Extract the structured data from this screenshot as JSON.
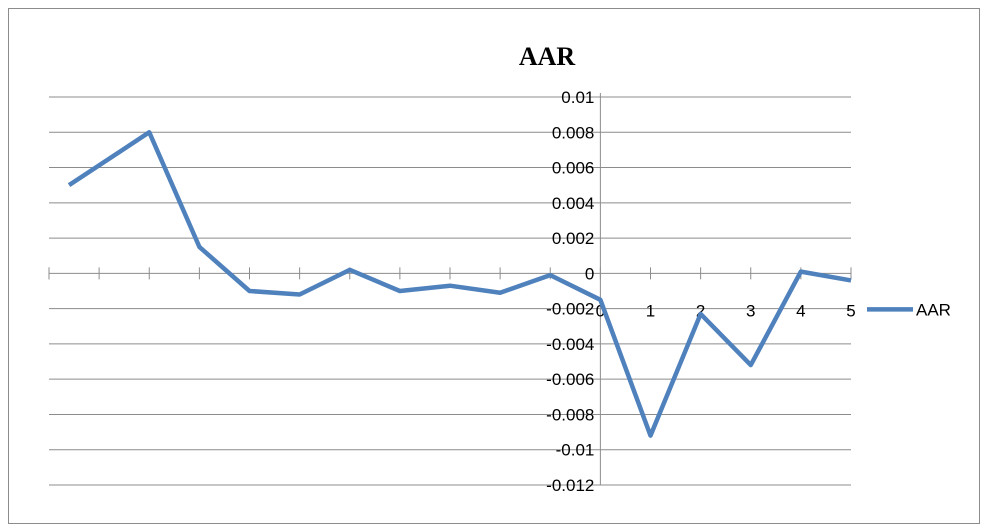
{
  "chart_data": {
    "type": "line",
    "title": "AAR",
    "xlabel": "",
    "ylabel": "",
    "x": [
      -10,
      -9,
      -8,
      -7,
      -6,
      -5,
      -4,
      -3,
      -2,
      -1,
      0,
      1,
      2,
      3,
      4,
      5
    ],
    "x_tick_labels": [
      "0",
      "1",
      "2",
      "3",
      "4",
      "5"
    ],
    "x_tick_values": [
      0,
      1,
      2,
      3,
      4,
      5
    ],
    "xlim": [
      -11,
      5
    ],
    "ylim": [
      -0.012,
      0.01
    ],
    "y_ticks": [
      0.01,
      0.008,
      0.006,
      0.004,
      0.002,
      0,
      -0.002,
      -0.004,
      -0.006,
      -0.008,
      -0.01,
      -0.012
    ],
    "y_tick_labels": [
      "0.01",
      "0.008",
      "0.006",
      "0.004",
      "0.002",
      "0",
      "-0.002",
      "-0.004",
      "-0.006",
      "-0.008",
      "-0.01",
      "-0.012"
    ],
    "grid": "horizontal",
    "legend_position": "right",
    "series": [
      {
        "name": "AAR",
        "color": "#4f81bd",
        "values": [
          0.008,
          0.0015,
          -0.001,
          -0.0012,
          0.0002,
          -0.001,
          -0.0007,
          -0.0011,
          -0.0001,
          -0.0015,
          -0.0092,
          -0.0023,
          -0.0052,
          0.0001,
          -0.0004
        ],
        "x": [
          -9,
          -8,
          -7,
          -6,
          -5,
          -4,
          -3,
          -2,
          -1,
          0,
          1,
          2,
          3,
          4,
          5
        ],
        "start_value": 0.005,
        "start_x": -10.6
      }
    ]
  }
}
